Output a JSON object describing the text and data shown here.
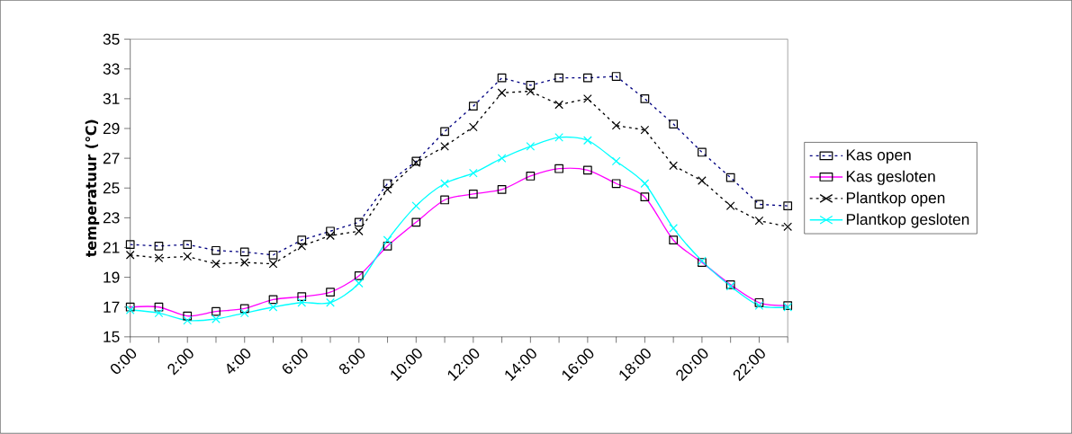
{
  "chart_data": {
    "type": "line",
    "ylabel": "temperatuur (℃)",
    "categories": [
      "0:00",
      null,
      "2:00",
      null,
      "4:00",
      null,
      "6:00",
      null,
      "8:00",
      null,
      "10:00",
      null,
      "12:00",
      null,
      "14:00",
      null,
      "16:00",
      null,
      "18:00",
      null,
      "20:00",
      null,
      "22:00",
      null
    ],
    "ylim": [
      15,
      35
    ],
    "yticks": [
      15,
      17,
      19,
      21,
      23,
      25,
      27,
      29,
      31,
      33,
      35
    ],
    "grid": false,
    "legend": "right",
    "series": [
      {
        "name": "Kas open",
        "color": "#000080",
        "marker": "square",
        "line_style": "dashed",
        "values": [
          21.2,
          21.1,
          21.2,
          20.8,
          20.7,
          20.5,
          21.5,
          22.1,
          22.7,
          25.3,
          26.8,
          28.8,
          30.5,
          32.4,
          31.9,
          32.4,
          32.4,
          32.5,
          31.0,
          29.3,
          27.4,
          25.7,
          23.9,
          23.8
        ]
      },
      {
        "name": "Kas gesloten",
        "color": "#ff00ff",
        "marker": "square",
        "line_style": "solid",
        "values": [
          17.0,
          17.0,
          16.4,
          16.7,
          16.9,
          17.5,
          17.7,
          18.0,
          19.1,
          21.1,
          22.7,
          24.2,
          24.6,
          24.9,
          25.8,
          26.3,
          26.2,
          25.3,
          24.4,
          21.5,
          20.0,
          18.5,
          17.3,
          17.1
        ]
      },
      {
        "name": "Plantkop open",
        "color": "#000000",
        "marker": "cross",
        "line_style": "dashed",
        "values": [
          20.5,
          20.3,
          20.4,
          19.9,
          20.0,
          19.9,
          21.1,
          21.8,
          22.1,
          24.9,
          26.7,
          27.8,
          29.1,
          31.4,
          31.5,
          30.6,
          31.0,
          29.2,
          28.9,
          26.5,
          25.5,
          23.8,
          22.8,
          22.4
        ]
      },
      {
        "name": "Plantkop gesloten",
        "color": "#00ffff",
        "marker": "cross",
        "line_style": "solid",
        "values": [
          16.8,
          16.6,
          16.1,
          16.2,
          16.6,
          17.0,
          17.3,
          17.3,
          18.6,
          21.5,
          23.8,
          25.3,
          26.0,
          27.0,
          27.8,
          28.4,
          28.2,
          26.8,
          25.3,
          22.3,
          20.1,
          18.4,
          17.1,
          17.0
        ]
      }
    ]
  }
}
